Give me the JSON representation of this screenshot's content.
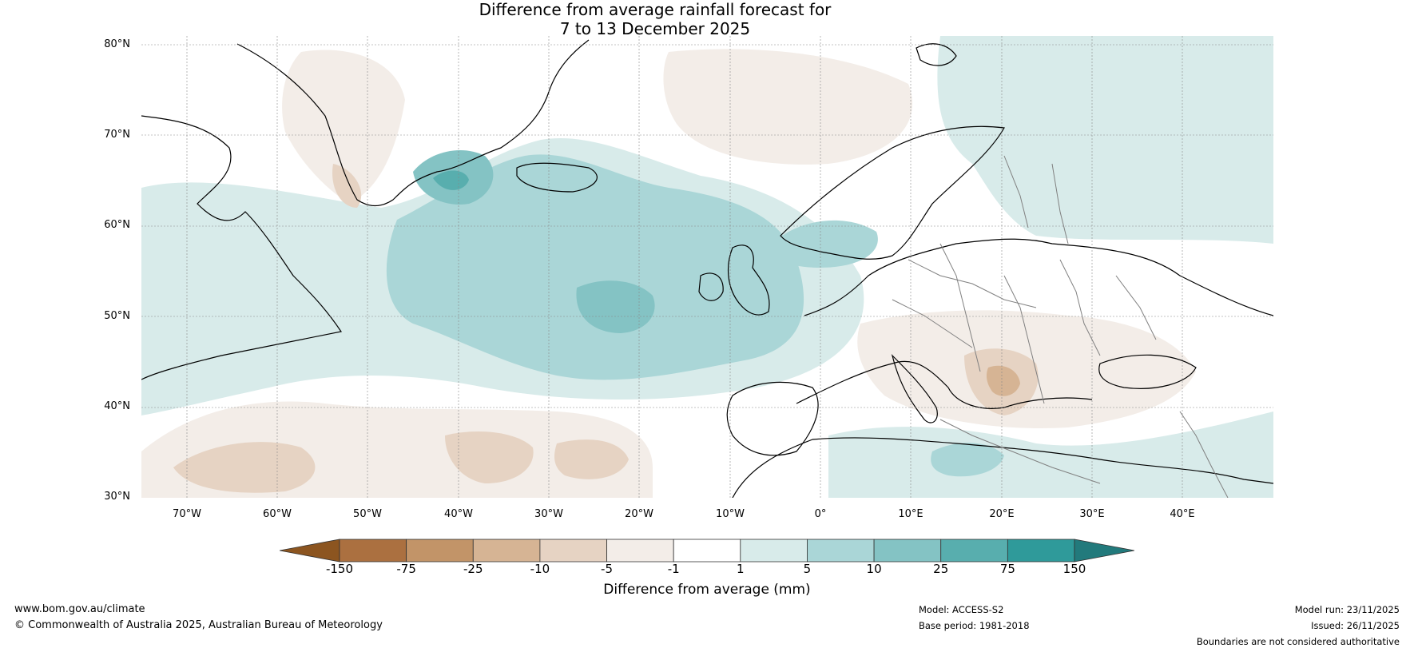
{
  "title": {
    "line1": "Difference from average rainfall forecast for",
    "line2": "7 to 13 December 2025"
  },
  "map": {
    "lat_labels": [
      "80°N",
      "70°N",
      "60°N",
      "50°N",
      "40°N",
      "30°N"
    ],
    "lon_labels": [
      "70°W",
      "60°W",
      "50°W",
      "40°W",
      "30°W",
      "20°W",
      "10°W",
      "0°",
      "10°E",
      "20°E",
      "30°E",
      "40°E"
    ],
    "extent": {
      "lon_min": -75,
      "lon_max": 50,
      "lat_min": 30,
      "lat_max": 81
    },
    "regions": [
      {
        "name": "greenland-dry",
        "category": "-5 to -1"
      },
      {
        "name": "north-atlantic-wet",
        "category": "5 to 10"
      },
      {
        "name": "central-atlantic-core",
        "category": "10 to 25"
      },
      {
        "name": "east-greenland-coast-wet",
        "category": "25 to 75"
      },
      {
        "name": "balkans-dry",
        "category": "-10 to -5"
      },
      {
        "name": "subtropical-atlantic-dry",
        "category": "-10 to -5"
      },
      {
        "name": "scandinavia-wet",
        "category": "1 to 5"
      },
      {
        "name": "eastern-mediterranean-wet",
        "category": "5 to 10"
      }
    ]
  },
  "colorbar": {
    "ticks": [
      "-150",
      "-75",
      "-25",
      "-10",
      "-5",
      "-1",
      "1",
      "5",
      "10",
      "25",
      "75",
      "150"
    ],
    "colors": [
      "#8c5520",
      "#ab7040",
      "#c29468",
      "#d6b494",
      "#e6d3c3",
      "#f3ede8",
      "#ffffff",
      "#d8ebea",
      "#aad6d7",
      "#84c3c4",
      "#58aeae",
      "#2f9a9a",
      "#227a7c"
    ],
    "label": "Difference from average (mm)"
  },
  "footer": {
    "website": "www.bom.gov.au/climate",
    "copyright": "© Commonwealth of Australia 2025, Australian Bureau of Meteorology",
    "model": "Model: ACCESS-S2",
    "base_period": "Base period: 1981-2018",
    "model_run": "Model run: 23/11/2025",
    "issued": "Issued: 26/11/2025",
    "disclaimer": "Boundaries are not considered authoritative"
  }
}
